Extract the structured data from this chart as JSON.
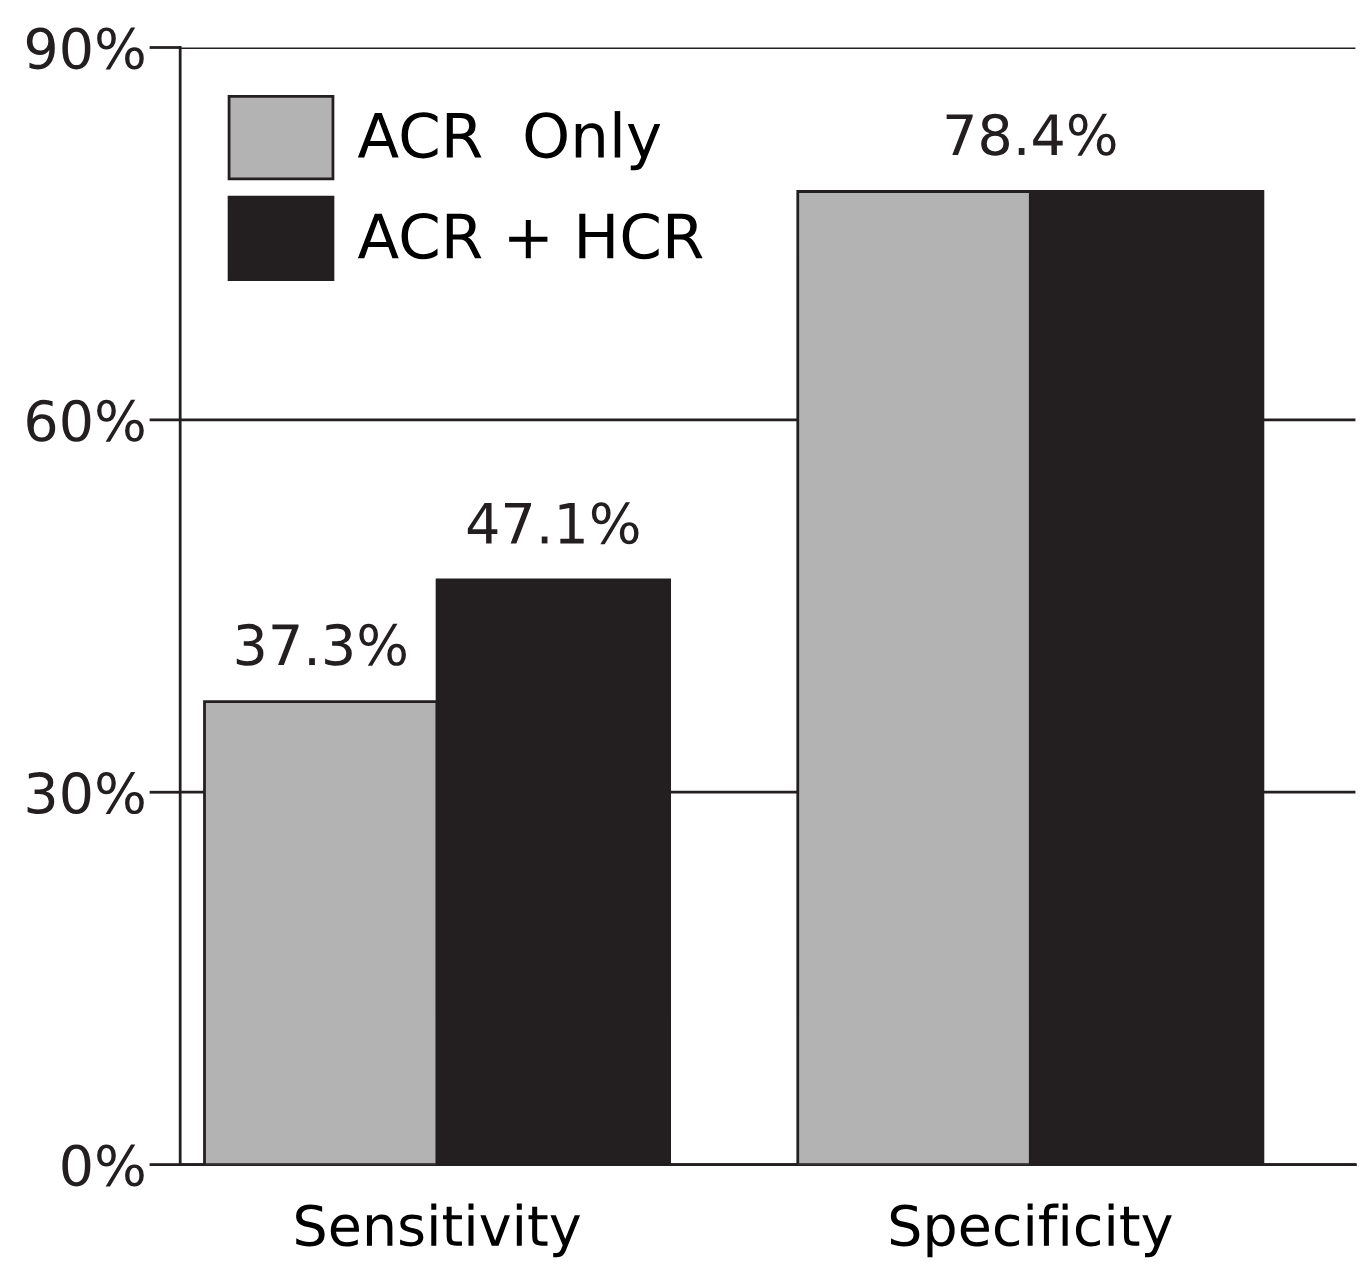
{
  "chart_data": {
    "type": "bar",
    "categories": [
      "Sensitivity",
      "Specificity"
    ],
    "series": [
      {
        "name": "ACR  Only",
        "color": "#b3b3b3",
        "values": [
          37.3,
          78.4
        ],
        "value_labels": [
          "37.3%",
          null
        ]
      },
      {
        "name": "ACR + HCR",
        "color": "#231f20",
        "values": [
          47.1,
          78.4
        ],
        "value_labels": [
          "47.1%",
          null
        ]
      }
    ],
    "annotations": [
      {
        "text": "78.4%",
        "x": "Specificity",
        "y": 78.4
      }
    ],
    "ylim": [
      0,
      90
    ],
    "yticks": [
      {
        "value": 0,
        "label": "0%"
      },
      {
        "value": 30,
        "label": "30%"
      },
      {
        "value": 60,
        "label": "60%"
      },
      {
        "value": 90,
        "label": "90%"
      }
    ],
    "grid": "y",
    "legend": "top left"
  }
}
